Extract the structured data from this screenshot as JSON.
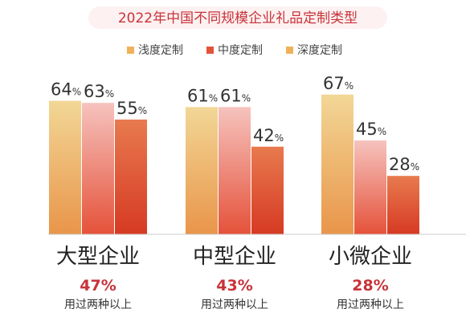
{
  "chart_data": {
    "type": "bar",
    "title": "2022年中国不同规模企业礼品定制类型",
    "categories": [
      "大型企业",
      "中型企业",
      "小微企业"
    ],
    "series": [
      {
        "name": "浅度定制",
        "values": [
          64,
          61,
          67
        ]
      },
      {
        "name": "中度定制",
        "values": [
          63,
          61,
          45
        ]
      },
      {
        "name": "深度定制",
        "values": [
          55,
          42,
          28
        ]
      }
    ],
    "value_suffix": "%",
    "ylim": [
      0,
      75
    ],
    "grid": false,
    "legend_position": "top-center",
    "category_totals": [
      "47%",
      "43%",
      "28%"
    ],
    "category_total_caption": "用过两种以上",
    "colors": {
      "title": "#c8333a",
      "title_bg": "#fdf1f1",
      "series": [
        {
          "top": "#f2d796",
          "bottom": "#e9954a"
        },
        {
          "top": "#f6c3be",
          "bottom": "#e5523a"
        },
        {
          "top": "#e87a4e",
          "bottom": "#d63a23"
        }
      ],
      "legend_swatches": [
        "#efb25a",
        "#e5523a",
        "#efb25a"
      ]
    }
  }
}
